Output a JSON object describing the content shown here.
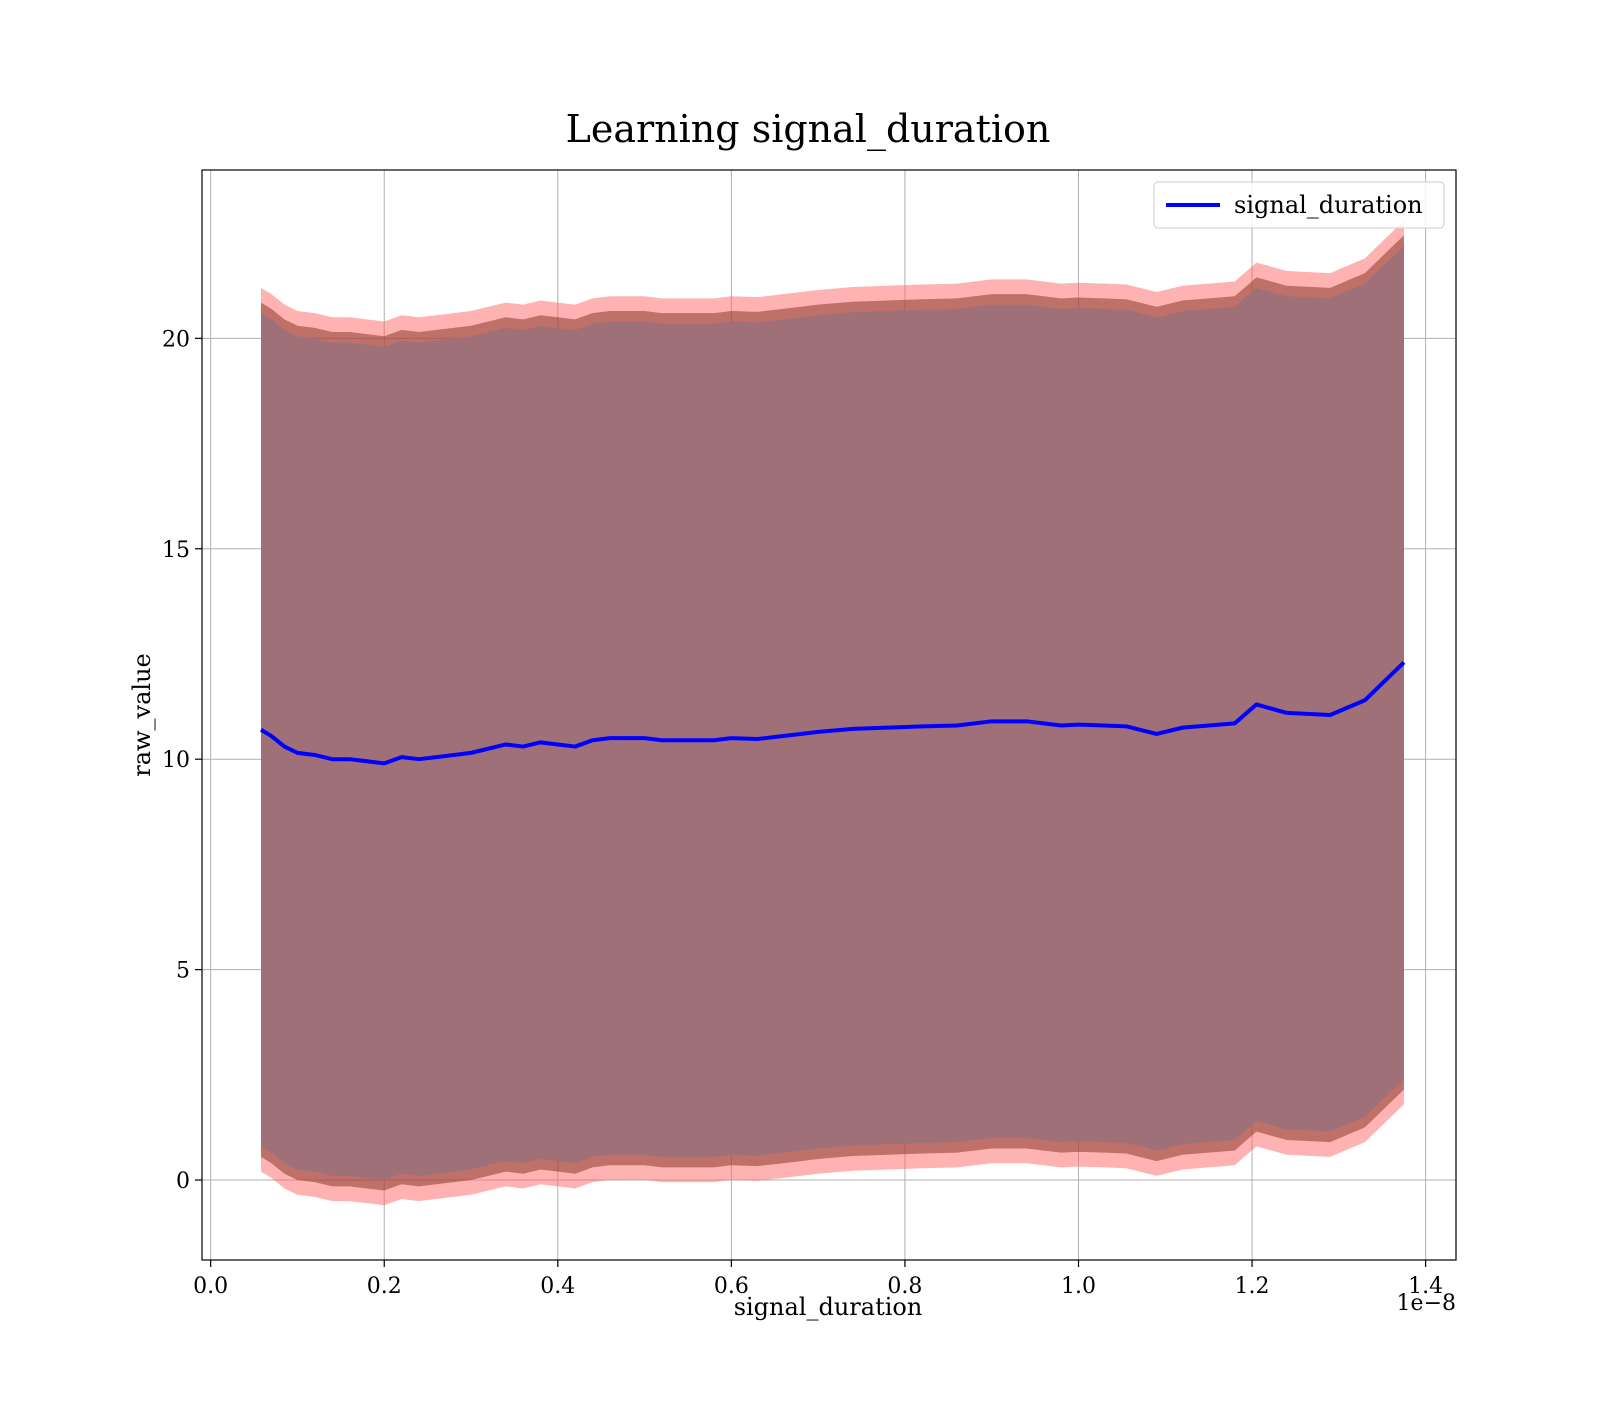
{
  "chart_data": {
    "type": "area",
    "title": "Learning signal_duration",
    "xlabel": "signal_duration",
    "ylabel": "raw_value",
    "x_offset_label": "1e−8",
    "xlim": [
      -0.01,
      1.435
    ],
    "ylim": [
      -1.9,
      24.0
    ],
    "x_ticks": [
      0.0,
      0.2,
      0.4,
      0.6,
      0.8,
      1.0,
      1.2,
      1.4
    ],
    "x_tick_labels": [
      "0.0",
      "0.2",
      "0.4",
      "0.6",
      "0.8",
      "1.0",
      "1.2",
      "1.4"
    ],
    "y_ticks": [
      0,
      5,
      10,
      15,
      20
    ],
    "y_tick_labels": [
      "0",
      "5",
      "10",
      "15",
      "20"
    ],
    "grid": true,
    "legend_position": "top-right",
    "colors": {
      "line": "#0000ff",
      "outer_band": "#ff6666",
      "inner_band": "#8b3a2e",
      "core_band": "#a07079",
      "grid": "#b0b0b0"
    },
    "series": [
      {
        "name": "signal_duration",
        "x": [
          0.058,
          0.07,
          0.085,
          0.1,
          0.12,
          0.14,
          0.16,
          0.18,
          0.2,
          0.22,
          0.24,
          0.26,
          0.28,
          0.3,
          0.32,
          0.34,
          0.36,
          0.38,
          0.4,
          0.42,
          0.44,
          0.46,
          0.48,
          0.5,
          0.52,
          0.55,
          0.58,
          0.6,
          0.63,
          0.66,
          0.7,
          0.74,
          0.78,
          0.82,
          0.86,
          0.9,
          0.94,
          0.98,
          1.0,
          1.03,
          1.055,
          1.09,
          1.12,
          1.15,
          1.18,
          1.205,
          1.24,
          1.29,
          1.33,
          1.375
        ],
        "mean": [
          10.7,
          10.55,
          10.3,
          10.15,
          10.1,
          10.0,
          10.0,
          9.95,
          9.9,
          10.05,
          10.0,
          10.05,
          10.1,
          10.15,
          10.25,
          10.35,
          10.3,
          10.4,
          10.35,
          10.3,
          10.45,
          10.5,
          10.5,
          10.5,
          10.45,
          10.45,
          10.45,
          10.5,
          10.48,
          10.55,
          10.65,
          10.72,
          10.75,
          10.78,
          10.8,
          10.9,
          10.9,
          10.8,
          10.82,
          10.8,
          10.78,
          10.6,
          10.75,
          10.8,
          10.85,
          11.3,
          11.1,
          11.05,
          11.4,
          12.3
        ],
        "std_band_inner": 9.9,
        "std_band_outer": 10.5
      }
    ]
  }
}
